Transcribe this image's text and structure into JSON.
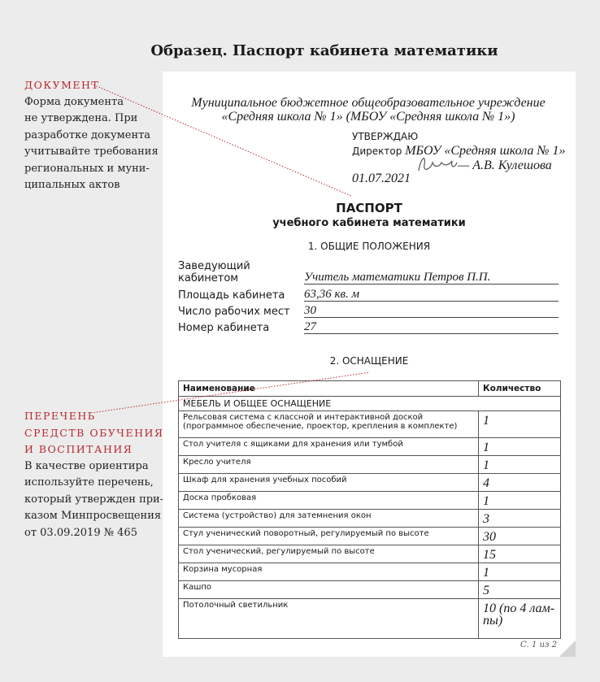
{
  "title": "Образец. Паспорт кабинета математики",
  "notes": [
    {
      "heading": "ДОКУМЕНТ",
      "lines": [
        "Форма документа",
        "не утверждена. При",
        "разработке документа",
        "учитывайте требования",
        "региональных и муни-",
        "ципальных актов"
      ]
    },
    {
      "heading_lines": [
        "ПЕРЕЧЕНЬ",
        "СРЕДСТВ ОБУЧЕНИЯ",
        "И ВОСПИТАНИЯ"
      ],
      "lines": [
        "В качестве ориентира",
        "используйте перечень,",
        "который утвержден при-",
        "казом Минпросвещения",
        "от 03.09.2019 № 465"
      ]
    }
  ],
  "org": {
    "line1": "Муниципальное бюджетное общеобразовательное учреждение",
    "line2": "«Средняя школа № 1» (МБОУ «Средняя школа № 1»)"
  },
  "approval": {
    "label": "УТВЕРЖДАЮ",
    "position": "Директор",
    "org": "МБОУ «Средняя школа № 1»",
    "name": "— А.В. Кулешова",
    "date": "01.07.2021",
    "signature": "Кулеш"
  },
  "heading": {
    "title": "ПАСПОРТ",
    "subtitle": "учебного кабинета математики",
    "section1": "1. ОБЩИЕ ПОЛОЖЕНИЯ",
    "section2": "2. ОСНАЩЕНИЕ"
  },
  "fields": [
    {
      "label": "Заведующий кабинетом",
      "value": "Учитель математики Петров П.П."
    },
    {
      "label": "Площадь кабинета",
      "value": "63,36 кв. м"
    },
    {
      "label": "Число рабочих мест",
      "value": "30"
    },
    {
      "label": "Номер кабинета",
      "value": "27"
    }
  ],
  "table": {
    "headers": [
      "Наименование",
      "Количество"
    ],
    "category": "МЕБЕЛЬ И ОБЩЕЕ ОСНАЩЕНИЕ",
    "rows": [
      {
        "name": "Рельсовая система с классной и интерактивной доской (программное обеспечение, проектор, крепления в комплекте)",
        "qty": "1"
      },
      {
        "name": "Стол учителя с ящиками для хранения или тумбой",
        "qty": "1"
      },
      {
        "name": "Кресло учителя",
        "qty": "1"
      },
      {
        "name": "Шкаф для хранения учебных пособий",
        "qty": "4"
      },
      {
        "name": "Доска пробковая",
        "qty": "1"
      },
      {
        "name": "Система (устройство) для затемнения окон",
        "qty": "3"
      },
      {
        "name": "Стул ученический поворотный, регулируемый по высоте",
        "qty": "30"
      },
      {
        "name": "Стол ученический, регулируемый по высоте",
        "qty": "15"
      },
      {
        "name": "Корзина мусорная",
        "qty": "1"
      },
      {
        "name": "Кашпо",
        "qty": "5"
      },
      {
        "name": "Потолочный светильник",
        "qty": "10 (по 4 лам-пы)"
      }
    ]
  },
  "page_number": "С. 1 из 2",
  "colors": {
    "accent": "#b5282e",
    "background": "#ececec",
    "page": "#ffffff"
  }
}
